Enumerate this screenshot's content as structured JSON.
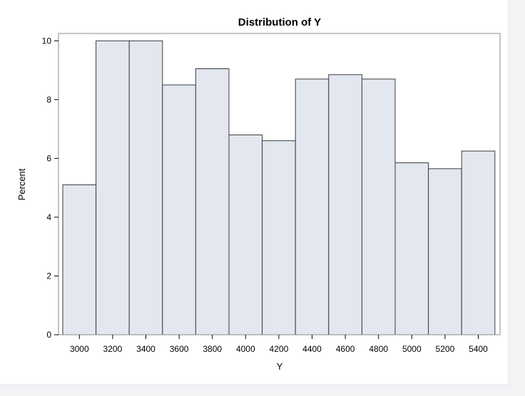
{
  "chart_data": {
    "type": "bar",
    "title": "Distribution of Y",
    "xlabel": "Y",
    "ylabel": "Percent",
    "categories": [
      "3000",
      "3200",
      "3400",
      "3600",
      "3800",
      "4000",
      "4200",
      "4400",
      "4600",
      "4800",
      "5000",
      "5200",
      "5400"
    ],
    "values": [
      5.1,
      10.0,
      10.0,
      8.5,
      9.05,
      6.8,
      6.6,
      8.7,
      8.85,
      8.7,
      5.85,
      5.65,
      6.25
    ],
    "yticks": [
      "0",
      "2",
      "4",
      "6",
      "8",
      "10"
    ],
    "ylim": [
      0,
      10.25
    ],
    "grid": false,
    "colors": {
      "bar_fill": "#e2e7f0",
      "bar_stroke": "#3c3c3c",
      "frame": "#8a8a8a",
      "background": "#ffffff"
    }
  }
}
